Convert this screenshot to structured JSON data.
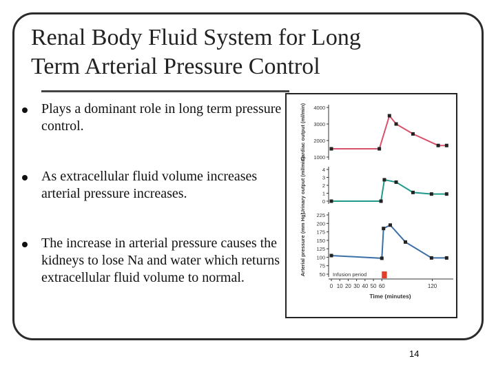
{
  "slide": {
    "title_lines": [
      "Renal Body Fluid System for Long",
      "Term Arterial Pressure Control"
    ],
    "bullets": [
      "Plays a dominant role in long term pressure control.",
      "As extracellular fluid volume increases arterial pressure increases.",
      "The increase in arterial pressure causes the kidneys to lose Na and water which returns extracellular fluid volume to normal."
    ],
    "page_number": "14"
  },
  "chart_data": [
    {
      "type": "line",
      "y_label": "Cardiac output (ml/min)",
      "xlim": [
        0,
        140
      ],
      "ylim": [
        1000,
        4000
      ],
      "yticks": [
        1000,
        2000,
        3000,
        4000
      ],
      "x": [
        0,
        57,
        69,
        77,
        97,
        127,
        137
      ],
      "series": [
        {
          "color": "#d8506a",
          "values": [
            1500,
            1500,
            3500,
            3000,
            2400,
            1700,
            1700
          ]
        }
      ]
    },
    {
      "type": "line",
      "y_label": "Urinary output (ml/min)",
      "xlim": [
        0,
        140
      ],
      "ylim": [
        0,
        4
      ],
      "yticks": [
        0,
        1,
        2,
        3,
        4
      ],
      "x": [
        0,
        59,
        63,
        77,
        97,
        119,
        137
      ],
      "series": [
        {
          "color": "#1f9a8a",
          "values": [
            0,
            0,
            2.7,
            2.4,
            1.1,
            0.9,
            0.9
          ]
        }
      ]
    },
    {
      "type": "line",
      "y_label": "Arterial pressure (mm Hg)",
      "x_label": "Time (minutes)",
      "xlim": [
        0,
        140
      ],
      "ylim": [
        50,
        225
      ],
      "yticks": [
        50,
        75,
        100,
        125,
        150,
        175,
        200,
        225
      ],
      "xticks": [
        0,
        10,
        20,
        30,
        40,
        50,
        60,
        120
      ],
      "x": [
        0,
        60,
        62,
        70,
        88,
        119,
        137
      ],
      "series": [
        {
          "color": "#3a6fa8",
          "values": [
            105,
            97,
            185,
            195,
            145,
            98,
            98
          ]
        }
      ],
      "annotation": {
        "text": "Infusion period",
        "x_start": 60,
        "x_end": 66,
        "color": "#e0402a"
      }
    }
  ]
}
